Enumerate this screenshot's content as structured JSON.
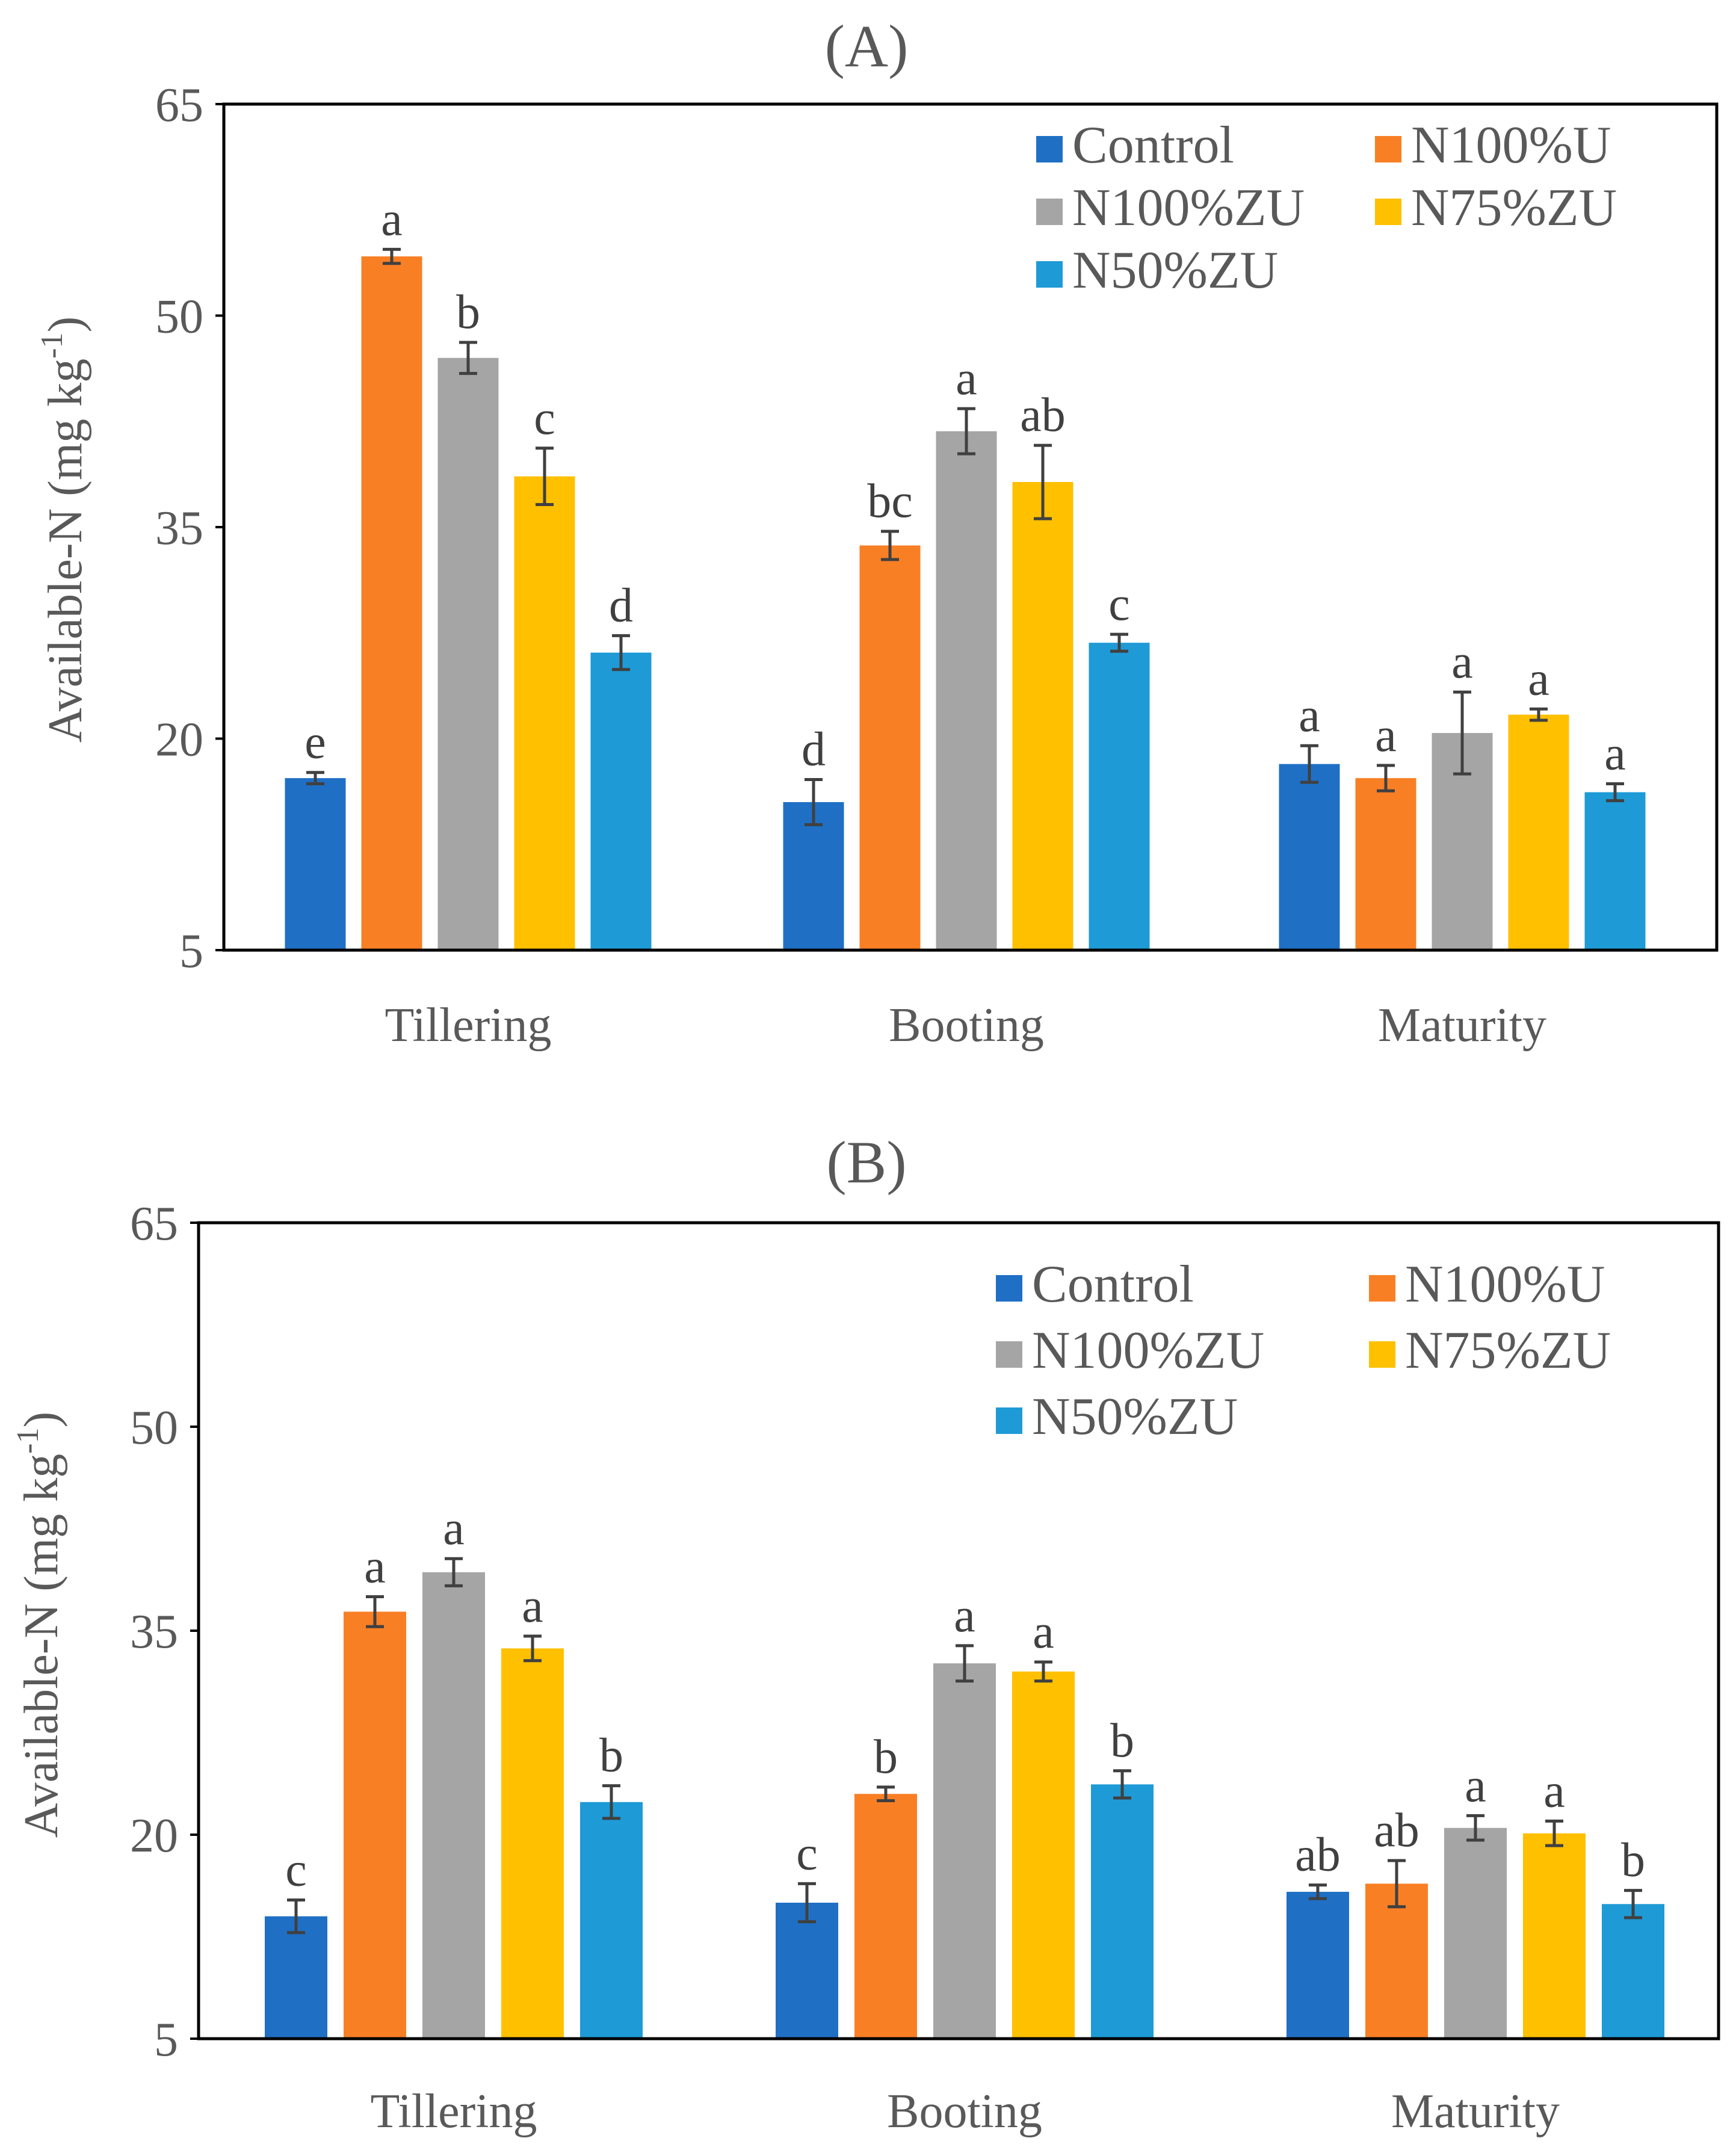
{
  "chart_data": [
    {
      "type": "bar",
      "title": "(A)",
      "ylabel": "Available-N (mg kg",
      "ylabel_sup": "-1",
      "ylabel_close": ")",
      "ylim": [
        5,
        65
      ],
      "yticks": [
        5,
        20,
        35,
        50,
        65
      ],
      "categories": [
        "Tillering",
        "Booting",
        "Maturity"
      ],
      "series": [
        {
          "name": "Control",
          "color": "#1f6fc5",
          "values": [
            17.2,
            15.5,
            18.2
          ],
          "errors": [
            0.4,
            1.6,
            1.3
          ],
          "letters": [
            "e",
            "d",
            "a"
          ]
        },
        {
          "name": "N100%U",
          "color": "#f97f25",
          "values": [
            54.2,
            33.7,
            17.2
          ],
          "errors": [
            0.5,
            1.0,
            0.9
          ],
          "letters": [
            "a",
            "bc",
            "a"
          ]
        },
        {
          "name": "N100%ZU",
          "color": "#a5a5a5",
          "values": [
            47.0,
            41.8,
            20.4
          ],
          "errors": [
            1.1,
            1.6,
            2.9
          ],
          "letters": [
            "b",
            "a",
            "a"
          ]
        },
        {
          "name": "N75%ZU",
          "color": "#ffc000",
          "values": [
            38.6,
            38.2,
            21.7
          ],
          "errors": [
            2.0,
            2.6,
            0.4
          ],
          "letters": [
            "c",
            "ab",
            "a"
          ]
        },
        {
          "name": "N50%ZU",
          "color": "#1e9ad6",
          "values": [
            26.1,
            26.8,
            16.2
          ],
          "errors": [
            1.2,
            0.6,
            0.6
          ],
          "letters": [
            "d",
            "c",
            "a"
          ]
        }
      ]
    },
    {
      "type": "bar",
      "title": "(B)",
      "ylabel": "Available-N (mg kg",
      "ylabel_sup": "-1",
      "ylabel_close": ")",
      "ylim": [
        5,
        65
      ],
      "yticks": [
        5,
        20,
        35,
        50,
        65
      ],
      "categories": [
        "Tillering",
        "Booting",
        "Maturity"
      ],
      "series": [
        {
          "name": "Control",
          "color": "#1f6fc5",
          "values": [
            14.0,
            15.0,
            15.8
          ],
          "errors": [
            1.2,
            1.4,
            0.5
          ],
          "letters": [
            "c",
            "c",
            "ab"
          ]
        },
        {
          "name": "N100%U",
          "color": "#f97f25",
          "values": [
            36.4,
            23.0,
            16.4
          ],
          "errors": [
            1.1,
            0.5,
            1.7
          ],
          "letters": [
            "a",
            "b",
            "ab"
          ]
        },
        {
          "name": "N100%ZU",
          "color": "#a5a5a5",
          "values": [
            39.3,
            32.6,
            20.5
          ],
          "errors": [
            1.0,
            1.3,
            0.9
          ],
          "letters": [
            "a",
            "a",
            "a"
          ]
        },
        {
          "name": "N75%ZU",
          "color": "#ffc000",
          "values": [
            33.7,
            32.0,
            20.1
          ],
          "errors": [
            0.9,
            0.7,
            0.9
          ],
          "letters": [
            "a",
            "a",
            "a"
          ]
        },
        {
          "name": "N50%ZU",
          "color": "#1e9ad6",
          "values": [
            22.4,
            23.7,
            14.9
          ],
          "errors": [
            1.2,
            1.0,
            1.0
          ],
          "letters": [
            "b",
            "b",
            "b"
          ]
        }
      ]
    }
  ]
}
